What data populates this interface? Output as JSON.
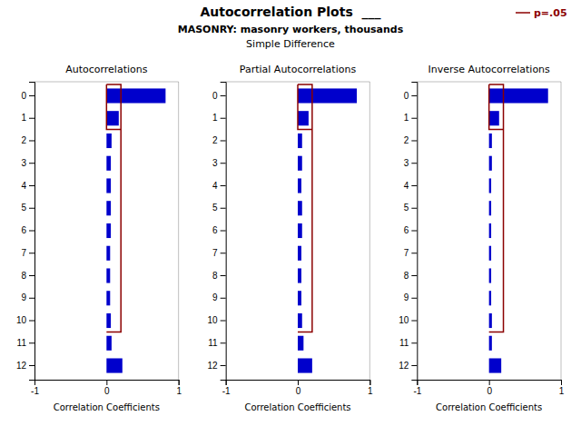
{
  "title": "Autocorrelation Plots  ___",
  "subtitle": [
    "MASONRY: masonry workers, thousands",
    "Simple Difference"
  ],
  "annotation": "p=.05",
  "chart_data": [
    {
      "type": "bar",
      "orientation": "horizontal",
      "title": "Autocorrelations",
      "categories": [
        "0",
        "1",
        "2",
        "3",
        "4",
        "5",
        "6",
        "7",
        "8",
        "9",
        "10",
        "11",
        "12"
      ],
      "values": [
        0.82,
        0.17,
        0.07,
        0.06,
        0.06,
        0.06,
        0.06,
        0.05,
        0.05,
        0.05,
        0.06,
        0.07,
        0.22
      ],
      "color": "#0000CC",
      "xlabel": "Correlation Coefficients",
      "xlim": [
        -1.0,
        1.0
      ],
      "xticks": [
        -1,
        0,
        1
      ],
      "grid": false,
      "conf_bound": {
        "value": 0.2,
        "color": "#8B0000"
      }
    },
    {
      "type": "bar",
      "orientation": "horizontal",
      "title": "Partial Autocorrelations",
      "categories": [
        "0",
        "1",
        "2",
        "3",
        "4",
        "5",
        "6",
        "7",
        "8",
        "9",
        "10",
        "11",
        "12"
      ],
      "values": [
        0.82,
        0.15,
        0.06,
        0.06,
        0.05,
        0.06,
        0.06,
        0.05,
        0.05,
        0.05,
        0.06,
        0.08,
        0.2
      ],
      "color": "#0000CC",
      "xlabel": "Correlation Coefficients",
      "xlim": [
        -1.0,
        1.0
      ],
      "xticks": [
        -1,
        0,
        1
      ],
      "grid": false,
      "conf_bound": {
        "value": 0.2,
        "color": "#8B0000"
      }
    },
    {
      "type": "bar",
      "orientation": "horizontal",
      "title": "Inverse Autocorrelations",
      "categories": [
        "0",
        "1",
        "2",
        "3",
        "4",
        "5",
        "6",
        "7",
        "8",
        "9",
        "10",
        "11",
        "12"
      ],
      "values": [
        0.82,
        0.14,
        0.04,
        0.04,
        0.03,
        0.03,
        0.03,
        0.03,
        0.03,
        0.03,
        0.04,
        0.04,
        0.17
      ],
      "color": "#0000CC",
      "xlabel": "Correlation Coefficients",
      "xlim": [
        -1.0,
        1.0
      ],
      "xticks": [
        -1,
        0,
        1
      ],
      "grid": false,
      "conf_bound": {
        "value": 0.2,
        "color": "#8B0000"
      }
    }
  ]
}
